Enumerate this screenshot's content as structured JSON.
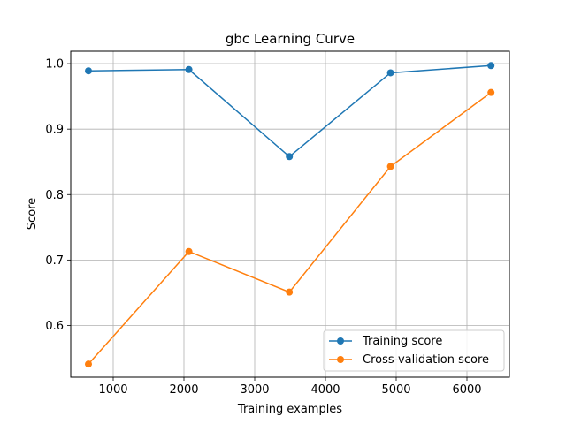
{
  "chart_data": {
    "type": "line",
    "title": "gbc Learning Curve",
    "xlabel": "Training examples",
    "ylabel": "Score",
    "x": [
      650,
      2070,
      3490,
      4920,
      6340
    ],
    "series": [
      {
        "name": "Training score",
        "color": "#1f77b4",
        "values": [
          0.989,
          0.991,
          0.858,
          0.986,
          0.997
        ]
      },
      {
        "name": "Cross-validation score",
        "color": "#ff7f0e",
        "values": [
          0.541,
          0.713,
          0.651,
          0.843,
          0.956
        ]
      }
    ],
    "xlim": [
      400,
      6600
    ],
    "ylim": [
      0.521,
      1.019
    ],
    "xticks": [
      1000,
      2000,
      3000,
      4000,
      5000,
      6000
    ],
    "xtick_labels": [
      "1000",
      "2000",
      "3000",
      "4000",
      "5000",
      "6000"
    ],
    "yticks": [
      0.6,
      0.7,
      0.8,
      0.9,
      1.0
    ],
    "ytick_labels": [
      "0.6",
      "0.7",
      "0.8",
      "0.9",
      "1.0"
    ],
    "grid": true,
    "legend_position": "lower-right"
  }
}
